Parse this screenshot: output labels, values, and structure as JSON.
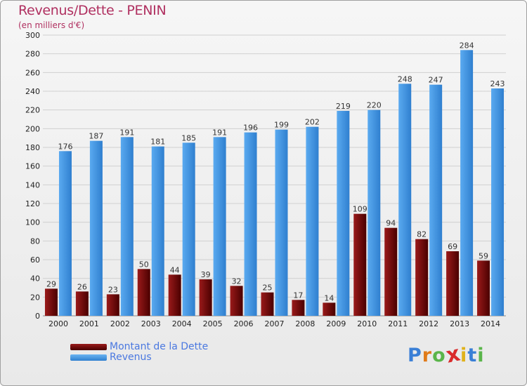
{
  "header": {
    "title": "Revenus/Dette - PENIN",
    "subtitle": "(en milliers d'€)"
  },
  "colors": {
    "dette": "#7a0a0a",
    "revenus": "#3f95e3",
    "grid": "#d0d0d0",
    "axis_text": "#222222"
  },
  "chart_data": {
    "type": "bar",
    "title": "Revenus/Dette - PENIN",
    "subtitle": "(en milliers d'€)",
    "xlabel": "",
    "ylabel": "",
    "ylim": [
      0,
      300
    ],
    "yticks": [
      0,
      20,
      40,
      60,
      80,
      100,
      120,
      140,
      160,
      180,
      200,
      220,
      240,
      260,
      280,
      300
    ],
    "grid": true,
    "legend_position": "bottom-left",
    "categories": [
      "2000",
      "2001",
      "2002",
      "2003",
      "2004",
      "2005",
      "2006",
      "2007",
      "2008",
      "2009",
      "2010",
      "2011",
      "2012",
      "2013",
      "2014"
    ],
    "series": [
      {
        "name": "Montant de la Dette",
        "color": "#7a0a0a",
        "values": [
          29,
          26,
          23,
          50,
          44,
          39,
          32,
          25,
          17,
          14,
          109,
          94,
          82,
          69,
          59
        ]
      },
      {
        "name": "Revenus",
        "color": "#3f95e3",
        "values": [
          176,
          187,
          191,
          181,
          185,
          191,
          196,
          199,
          202,
          219,
          220,
          248,
          247,
          284,
          243
        ]
      }
    ]
  },
  "legend": {
    "items": [
      {
        "label": "Montant de la Dette"
      },
      {
        "label": "Revenus"
      }
    ]
  },
  "logo": {
    "letters": [
      "P",
      "r",
      "o",
      "x",
      "i",
      "t",
      "i"
    ],
    "colors": [
      "#3a7fd6",
      "#e07b1a",
      "#5ab54a",
      "#d92b2b",
      "#e0b21a",
      "#3a7fd6",
      "#5ab54a"
    ]
  }
}
